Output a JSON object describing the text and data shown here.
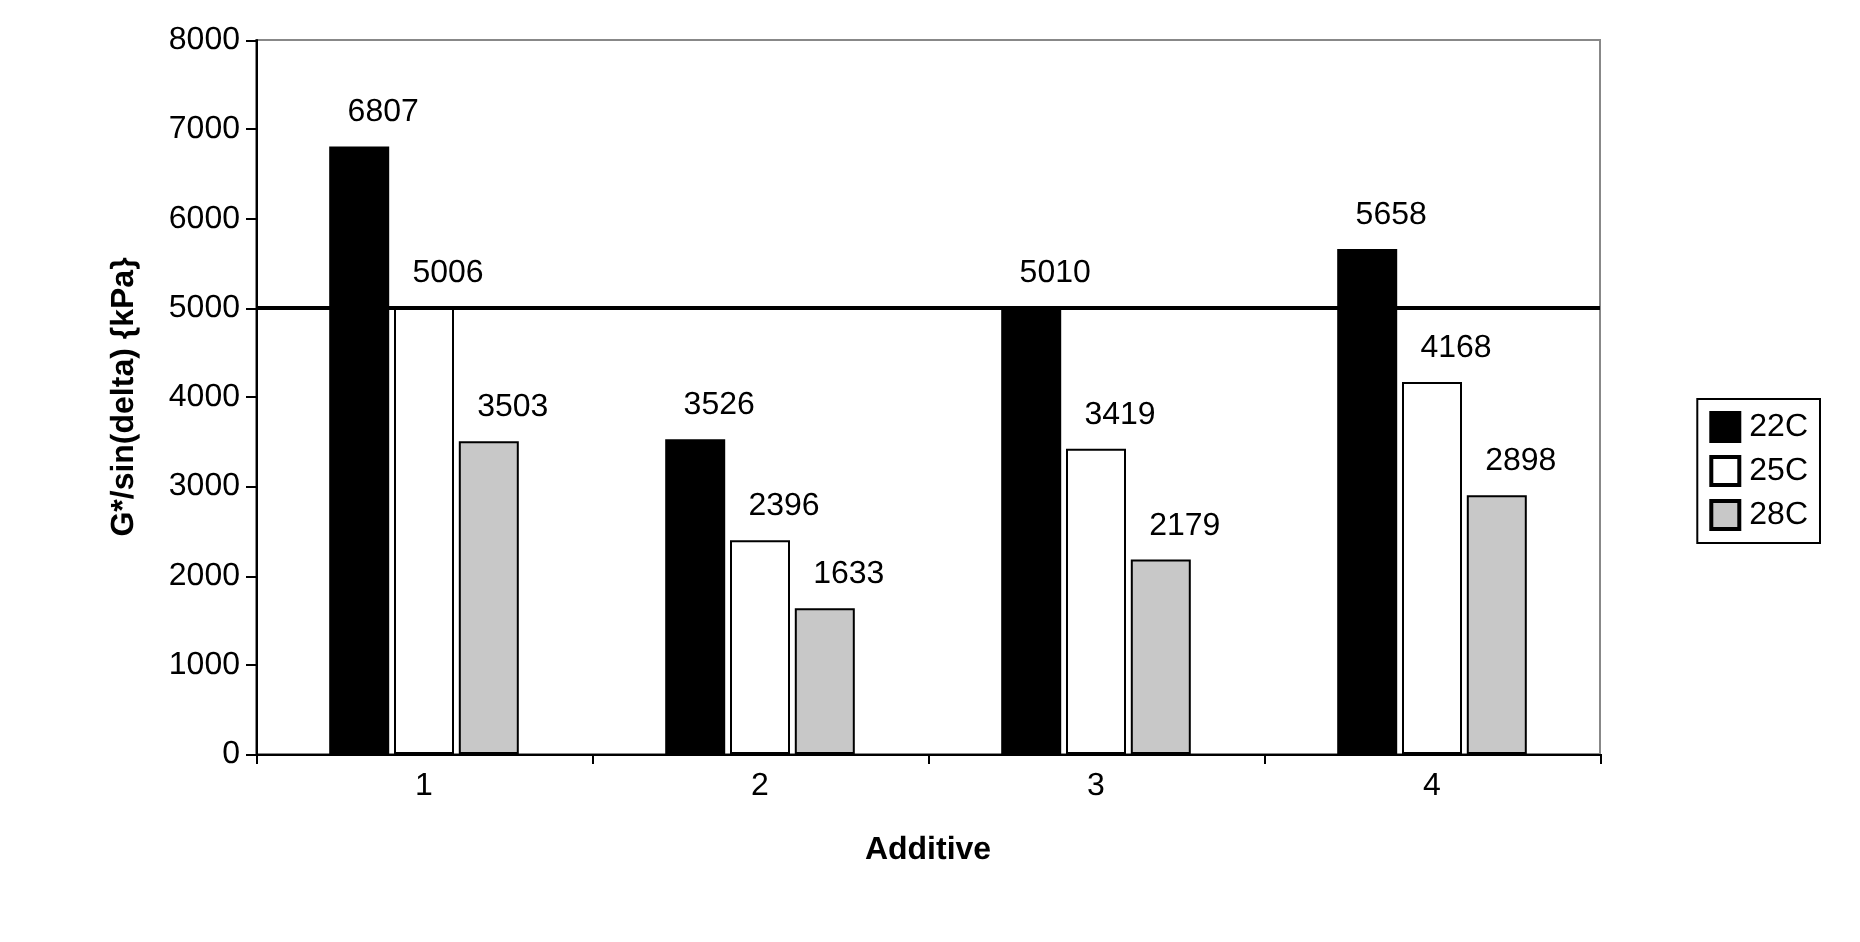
{
  "chart_data": {
    "type": "bar",
    "xlabel": "Additive",
    "ylabel": "G*/sin(delta) {kPa}",
    "categories": [
      "1",
      "2",
      "3",
      "4"
    ],
    "series": [
      {
        "name": "22C",
        "color": "#000000",
        "values": [
          6807,
          3526,
          5010,
          5658
        ]
      },
      {
        "name": "25C",
        "color": "#ffffff",
        "values": [
          5006,
          2396,
          3419,
          4168
        ]
      },
      {
        "name": "28C",
        "color": "#c8c8c8",
        "values": [
          3503,
          1633,
          2179,
          2898
        ]
      }
    ],
    "ylim": [
      0,
      8000
    ],
    "yticks": [
      0,
      1000,
      2000,
      3000,
      4000,
      5000,
      6000,
      7000,
      8000
    ],
    "ref_lines": [
      {
        "axis": "y",
        "value": 5000,
        "label": null,
        "color": "#000000"
      }
    ],
    "data_labels": true,
    "grid": false,
    "legend": "right"
  }
}
